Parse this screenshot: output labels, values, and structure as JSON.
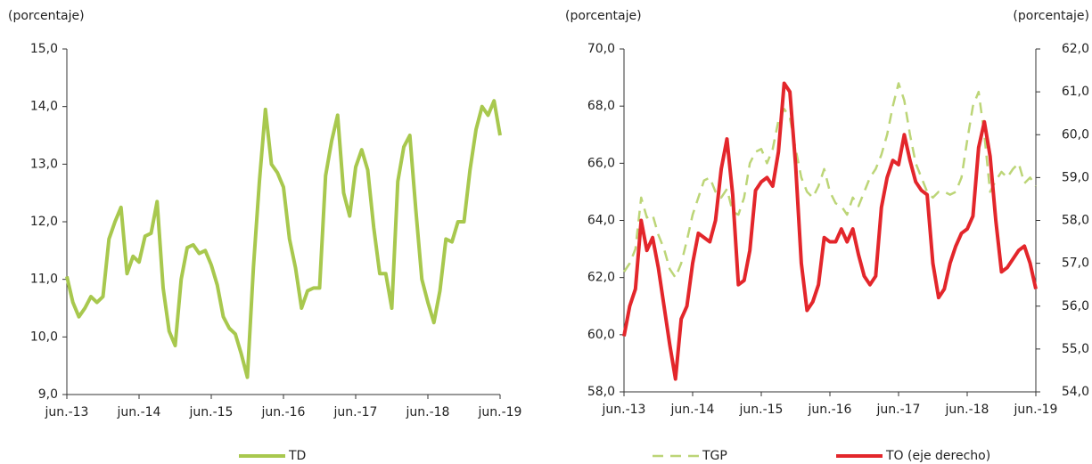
{
  "chart_data": [
    {
      "type": "line",
      "y_label": "(porcentaje)",
      "categories": [
        "jun.-13",
        null,
        null,
        null,
        null,
        null,
        null,
        null,
        null,
        null,
        null,
        null,
        "jun.-14",
        null,
        null,
        null,
        null,
        null,
        null,
        null,
        null,
        null,
        null,
        null,
        "jun.-15",
        null,
        null,
        null,
        null,
        null,
        null,
        null,
        null,
        null,
        null,
        null,
        "jun.-16",
        null,
        null,
        null,
        null,
        null,
        null,
        null,
        null,
        null,
        null,
        null,
        "jun.-17",
        null,
        null,
        null,
        null,
        null,
        null,
        null,
        null,
        null,
        null,
        null,
        "jun.-18",
        null,
        null,
        null,
        null,
        null,
        null,
        null,
        null,
        null,
        null,
        null,
        "jun.-19"
      ],
      "series": [
        {
          "name": "TD",
          "color": "#a8c84e",
          "line_style": "solid",
          "values": [
            11.05,
            10.6,
            10.35,
            10.5,
            10.7,
            10.6,
            10.7,
            11.7,
            12.0,
            12.25,
            11.1,
            11.4,
            11.3,
            11.75,
            11.8,
            12.35,
            10.85,
            10.1,
            9.85,
            11.0,
            11.55,
            11.6,
            11.45,
            11.5,
            11.25,
            10.9,
            10.35,
            10.15,
            10.05,
            9.7,
            9.3,
            11.2,
            12.7,
            13.95,
            13.0,
            12.85,
            12.6,
            11.7,
            11.2,
            10.5,
            10.8,
            10.85,
            10.85,
            12.8,
            13.4,
            13.85,
            12.5,
            12.1,
            12.95,
            13.25,
            12.9,
            11.9,
            11.1,
            11.1,
            10.5,
            12.7,
            13.3,
            13.5,
            12.2,
            11.0,
            10.6,
            10.25,
            10.8,
            11.7,
            11.65,
            12.0,
            12.0,
            12.9,
            13.6,
            14.0,
            13.85,
            14.1,
            13.5
          ]
        }
      ],
      "ylim": [
        9,
        15
      ],
      "yticks": [
        {
          "value": 9,
          "label": "9,0"
        },
        {
          "value": 10,
          "label": "10,0"
        },
        {
          "value": 11,
          "label": "11,0"
        },
        {
          "value": 12,
          "label": "12,0"
        },
        {
          "value": 13,
          "label": "13,0"
        },
        {
          "value": 14,
          "label": "14,0"
        },
        {
          "value": 15,
          "label": "15,0"
        }
      ]
    },
    {
      "type": "line",
      "y_label": "(porcentaje)",
      "y2_label": "(porcentaje)",
      "categories": [
        "jun.-13",
        null,
        null,
        null,
        null,
        null,
        null,
        null,
        null,
        null,
        null,
        null,
        "jun.-14",
        null,
        null,
        null,
        null,
        null,
        null,
        null,
        null,
        null,
        null,
        null,
        "jun.-15",
        null,
        null,
        null,
        null,
        null,
        null,
        null,
        null,
        null,
        null,
        null,
        "jun.-16",
        null,
        null,
        null,
        null,
        null,
        null,
        null,
        null,
        null,
        null,
        null,
        "jun.-17",
        null,
        null,
        null,
        null,
        null,
        null,
        null,
        null,
        null,
        null,
        null,
        "jun.-18",
        null,
        null,
        null,
        null,
        null,
        null,
        null,
        null,
        null,
        null,
        null,
        "jun.-19"
      ],
      "series": [
        {
          "name": "TGP",
          "color": "#bcd577",
          "line_style": "dashed",
          "values": [
            62.2,
            62.5,
            63.0,
            64.8,
            64.1,
            64.2,
            63.5,
            63.0,
            62.3,
            62.0,
            62.5,
            63.3,
            64.2,
            64.8,
            65.4,
            65.5,
            65.0,
            64.8,
            65.1,
            64.3,
            64.2,
            64.8,
            66.0,
            66.4,
            66.5,
            66.0,
            66.5,
            67.5,
            67.9,
            67.6,
            66.5,
            65.5,
            65.0,
            64.8,
            65.2,
            65.8,
            65.0,
            64.6,
            64.5,
            64.2,
            64.8,
            64.5,
            65.0,
            65.5,
            65.8,
            66.3,
            67.0,
            68.0,
            68.8,
            68.2,
            67.0,
            66.0,
            65.5,
            65.0,
            64.8,
            65.0,
            65.0,
            64.9,
            65.0,
            65.5,
            66.8,
            68.0,
            68.5,
            67.0,
            65.0,
            65.4,
            65.7,
            65.5,
            65.8,
            66.0,
            65.3,
            65.5,
            65.2
          ]
        },
        {
          "name": "TO (eje derecho)",
          "color": "#e3262b",
          "line_style": "solid",
          "axis": "y2",
          "values": [
            55.3,
            56.0,
            56.4,
            58.0,
            57.3,
            57.6,
            56.9,
            56.0,
            55.1,
            54.3,
            55.7,
            56.0,
            57.0,
            57.7,
            57.6,
            57.5,
            58.0,
            59.2,
            59.9,
            58.6,
            56.5,
            56.6,
            57.3,
            58.7,
            58.9,
            59.0,
            58.8,
            59.6,
            61.2,
            61.0,
            59.3,
            57.0,
            55.9,
            56.1,
            56.5,
            57.6,
            57.5,
            57.5,
            57.8,
            57.5,
            57.8,
            57.2,
            56.7,
            56.5,
            56.7,
            58.3,
            59.0,
            59.4,
            59.3,
            60.0,
            59.4,
            58.9,
            58.7,
            58.6,
            57.0,
            56.2,
            56.4,
            57.0,
            57.4,
            57.7,
            57.8,
            58.1,
            59.7,
            60.3,
            59.5,
            58.0,
            56.8,
            56.9,
            57.1,
            57.3,
            57.4,
            57.0,
            56.4
          ]
        }
      ],
      "ylim": [
        58,
        70
      ],
      "yticks": [
        {
          "value": 58,
          "label": "58,0"
        },
        {
          "value": 60,
          "label": "60,0"
        },
        {
          "value": 62,
          "label": "62,0"
        },
        {
          "value": 64,
          "label": "64,0"
        },
        {
          "value": 66,
          "label": "66,0"
        },
        {
          "value": 68,
          "label": "68,0"
        },
        {
          "value": 70,
          "label": "70,0"
        }
      ],
      "y2lim": [
        54,
        62
      ],
      "y2ticks": [
        {
          "value": 54,
          "label": "54,0"
        },
        {
          "value": 55,
          "label": "55,0"
        },
        {
          "value": 56,
          "label": "56,0"
        },
        {
          "value": 57,
          "label": "57,0"
        },
        {
          "value": 58,
          "label": "58,0"
        },
        {
          "value": 59,
          "label": "59,0"
        },
        {
          "value": 60,
          "label": "60,0"
        },
        {
          "value": 61,
          "label": "61,0"
        },
        {
          "value": 62,
          "label": "62,0"
        }
      ]
    }
  ]
}
